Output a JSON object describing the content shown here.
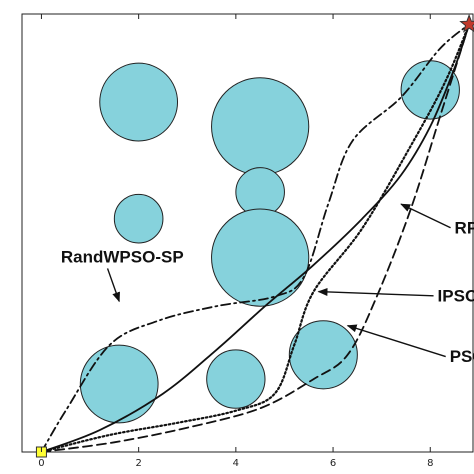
{
  "chart_data": {
    "type": "line",
    "title": "",
    "xlabel": "",
    "ylabel": "",
    "xlim": [
      -0.4,
      8.9
    ],
    "ylim": [
      0,
      9
    ],
    "xticks": [
      0,
      2,
      4,
      6,
      8
    ],
    "tick_labels": [
      "0",
      "2",
      "4",
      "6",
      "8"
    ],
    "grid": false,
    "start": {
      "x": 0,
      "y": 0,
      "marker": "square",
      "color": "#ffff33"
    },
    "goal": {
      "x": 8.8,
      "y": 8.8,
      "marker": "star",
      "color": "#c0392b"
    },
    "obstacle_color": "#86d2dc",
    "obstacles": [
      {
        "x": 2.0,
        "y": 7.2,
        "r": 0.8
      },
      {
        "x": 4.5,
        "y": 6.7,
        "r": 1.0
      },
      {
        "x": 4.5,
        "y": 5.35,
        "r": 0.5
      },
      {
        "x": 2.0,
        "y": 4.8,
        "r": 0.5
      },
      {
        "x": 4.5,
        "y": 4.0,
        "r": 1.0
      },
      {
        "x": 8.0,
        "y": 7.45,
        "r": 0.6
      },
      {
        "x": 1.6,
        "y": 1.4,
        "r": 0.8
      },
      {
        "x": 4.0,
        "y": 1.5,
        "r": 0.6
      },
      {
        "x": 5.8,
        "y": 2.0,
        "r": 0.7
      }
    ],
    "series": [
      {
        "name": "RandWPSO-SP",
        "style": "dashdot",
        "annotation": {
          "x": 0.4,
          "y": 3.9
        },
        "arrow_to": {
          "x": 1.6,
          "y": 3.1
        },
        "points": [
          [
            0,
            0
          ],
          [
            0.5,
            0.85
          ],
          [
            1.4,
            2.2
          ],
          [
            2.4,
            2.7
          ],
          [
            3.6,
            3.0
          ],
          [
            4.8,
            3.2
          ],
          [
            5.4,
            3.6
          ],
          [
            5.9,
            5.1
          ],
          [
            6.4,
            6.4
          ],
          [
            7.4,
            7.3
          ],
          [
            8.2,
            8.3
          ],
          [
            8.8,
            8.8
          ]
        ]
      },
      {
        "name": "RPSO",
        "style": "solid",
        "annotation": {
          "x": 8.5,
          "y": 4.5
        },
        "arrow_to": {
          "x": 7.4,
          "y": 5.1
        },
        "points": [
          [
            0,
            0
          ],
          [
            1.2,
            0.45
          ],
          [
            2.5,
            1.2
          ],
          [
            3.6,
            2.1
          ],
          [
            4.6,
            3.0
          ],
          [
            5.6,
            3.85
          ],
          [
            6.6,
            4.8
          ],
          [
            7.4,
            5.7
          ],
          [
            8.0,
            6.7
          ],
          [
            8.5,
            7.9
          ],
          [
            8.8,
            8.8
          ]
        ]
      },
      {
        "name": "IPSO",
        "style": "dotted",
        "annotation": {
          "x": 8.15,
          "y": 3.1
        },
        "arrow_to": {
          "x": 5.7,
          "y": 3.3
        },
        "points": [
          [
            0,
            0
          ],
          [
            1.4,
            0.35
          ],
          [
            2.8,
            0.6
          ],
          [
            4.0,
            0.85
          ],
          [
            4.8,
            1.2
          ],
          [
            5.2,
            2.2
          ],
          [
            5.6,
            3.3
          ],
          [
            6.6,
            4.6
          ],
          [
            7.6,
            6.3
          ],
          [
            8.3,
            7.6
          ],
          [
            8.8,
            8.8
          ]
        ]
      },
      {
        "name": "PSO",
        "style": "dashed",
        "annotation": {
          "x": 8.4,
          "y": 1.85
        },
        "arrow_to": {
          "x": 6.3,
          "y": 2.6
        },
        "points": [
          [
            0,
            0
          ],
          [
            1.5,
            0.2
          ],
          [
            3.0,
            0.5
          ],
          [
            4.5,
            0.9
          ],
          [
            5.6,
            1.5
          ],
          [
            6.3,
            2.0
          ],
          [
            6.9,
            3.2
          ],
          [
            7.6,
            5.0
          ],
          [
            8.2,
            6.9
          ],
          [
            8.8,
            8.8
          ]
        ]
      }
    ]
  }
}
